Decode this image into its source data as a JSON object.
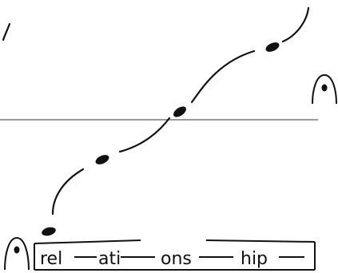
{
  "syllables": [
    "rel",
    "ati",
    "ons",
    "hip"
  ],
  "colors": {
    "ink": "#111111",
    "baseline": "#9a9a9a",
    "background": "#ffffff"
  },
  "icons": [
    "arch-symbol-left",
    "arch-symbol-right"
  ]
}
